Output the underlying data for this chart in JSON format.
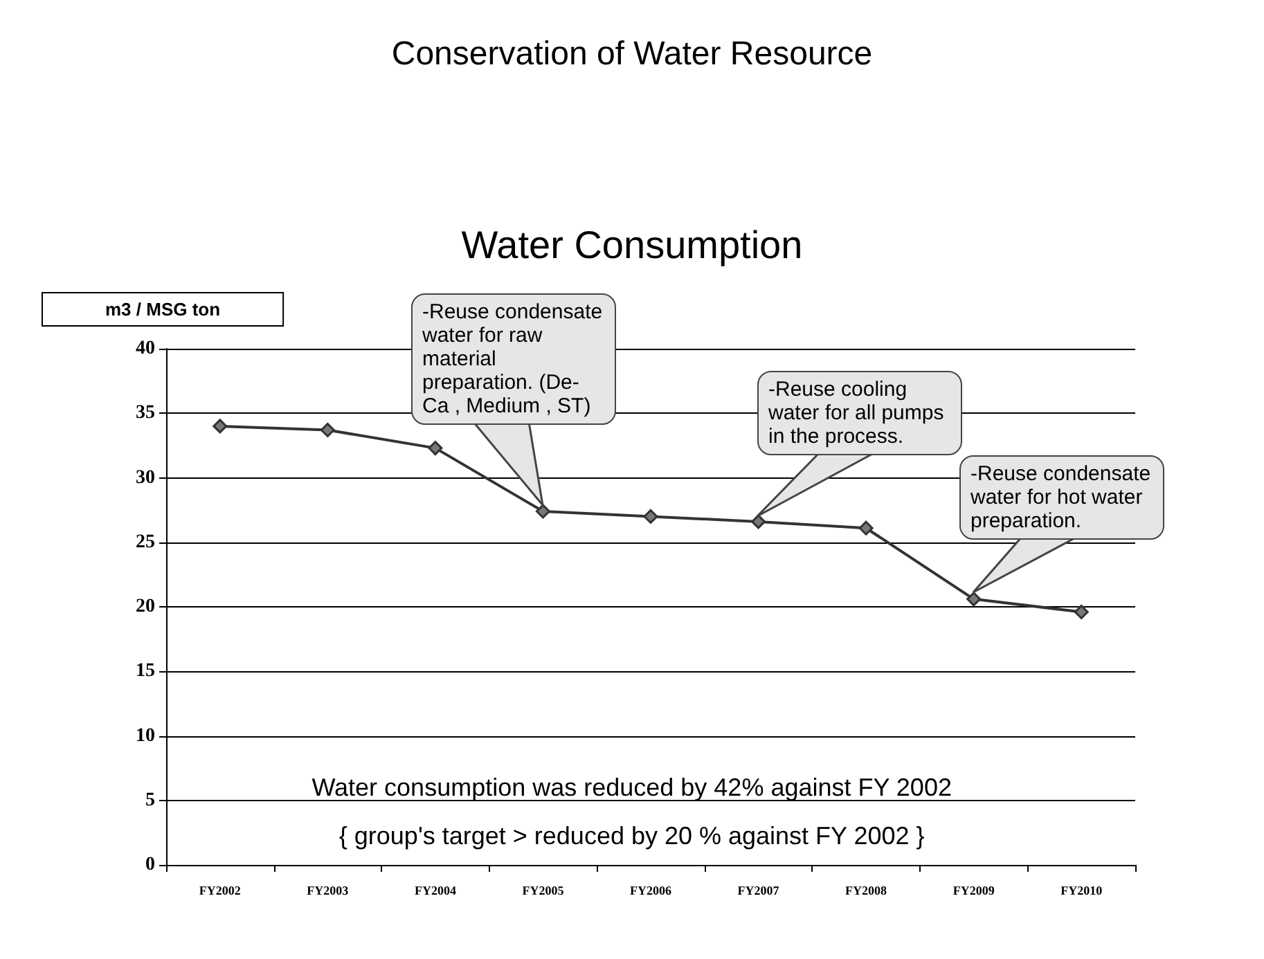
{
  "chart_data": {
    "type": "line",
    "title": "Conservation of Water Resource",
    "subtitle": "Water Consumption",
    "ylabel": "m3 / MSG ton",
    "categories": [
      "FY2002",
      "FY2003",
      "FY2004",
      "FY2005",
      "FY2006",
      "FY2007",
      "FY2008",
      "FY2009",
      "FY2010"
    ],
    "series": [
      {
        "color": "#333333",
        "values": [
          34.0,
          33.7,
          32.3,
          27.4,
          27.0,
          26.6,
          26.1,
          20.6,
          19.6
        ]
      }
    ],
    "ylim": [
      0,
      40
    ],
    "yticks": [
      0,
      5,
      10,
      15,
      20,
      25,
      30,
      35,
      40
    ],
    "grid": "y",
    "marker": "diamond",
    "line_style": "solid",
    "annotations": [
      "-Reuse condensate water for raw material preparation. (De-Ca , Medium , ST)",
      "-Reuse cooling water for all pumps in the process.",
      "-Reuse condensate water for hot water preparation.",
      "Water consumption was reduced by 42% against FY 2002",
      "{ group's target > reduced by 20 % against FY 2002 }"
    ]
  }
}
